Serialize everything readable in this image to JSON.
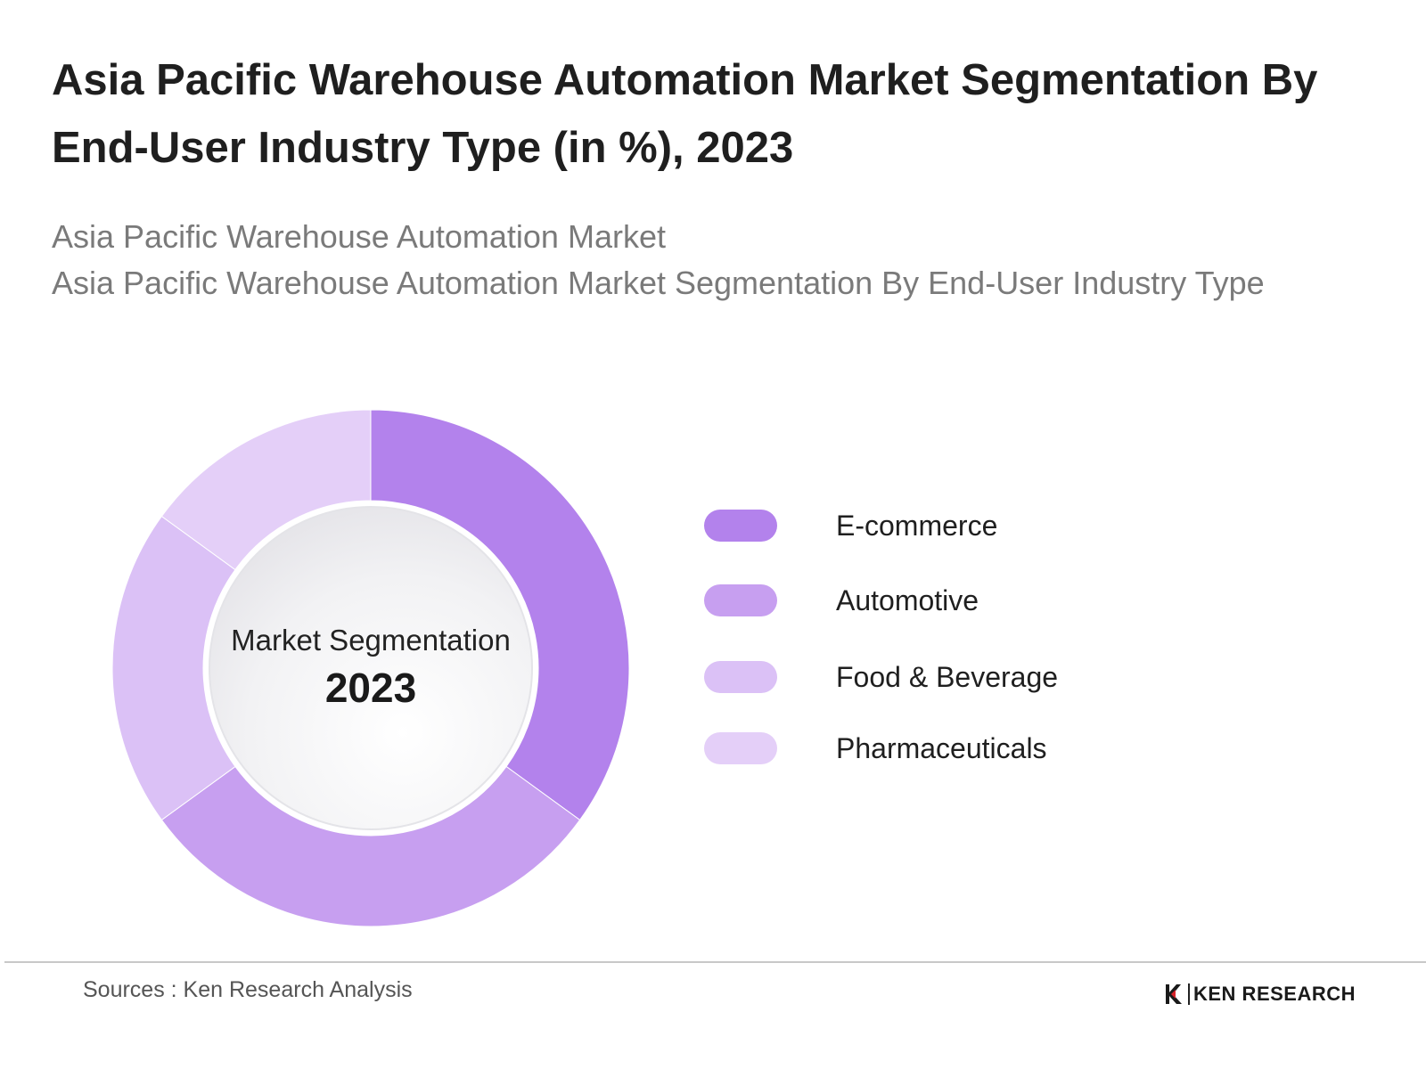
{
  "header": {
    "title": "Asia Pacific Warehouse Automation Market Segmentation By End-User Industry Type (in %), 2023",
    "subtitle_line1": "Asia Pacific Warehouse Automation Market",
    "subtitle_line2": "Asia Pacific Warehouse Automation Market Segmentation By End-User Industry Type"
  },
  "center": {
    "label": "Market Segmentation",
    "year": "2023"
  },
  "chart_data": {
    "type": "pie",
    "variant": "donut",
    "title": "Asia Pacific Warehouse Automation Market Segmentation By End-User Industry Type (in %), 2023",
    "categories": [
      "E-commerce",
      "Automotive",
      "Food & Beverage",
      "Pharmaceuticals"
    ],
    "values": [
      35,
      30,
      20,
      15
    ],
    "colors": [
      "#b382ec",
      "#c79ff0",
      "#dbc1f6",
      "#e4cff8"
    ],
    "legend_placement": "right",
    "start_angle_deg": 0,
    "direction": "clockwise"
  },
  "footer": {
    "source": "Sources : Ken Research Analysis",
    "brand": "KEN RESEARCH"
  }
}
